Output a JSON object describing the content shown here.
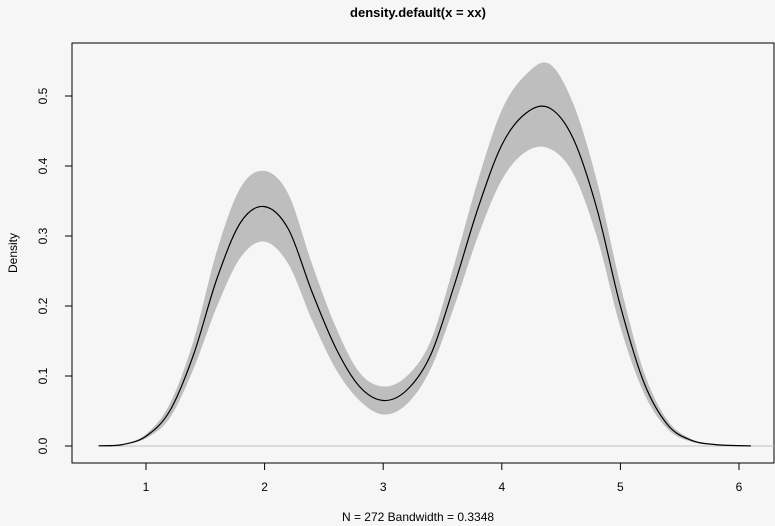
{
  "chart_data": {
    "type": "area",
    "title": "density.default(x = xx)",
    "xlabel": "N = 272   Bandwidth = 0.3348",
    "ylabel": "Density",
    "xlim": [
      0.6,
      6.1
    ],
    "ylim": [
      0,
      0.55
    ],
    "xticks": [
      1,
      2,
      3,
      4,
      5,
      6
    ],
    "yticks": [
      0.0,
      0.1,
      0.2,
      0.3,
      0.4,
      0.5
    ],
    "xtick_labels": [
      "1",
      "2",
      "3",
      "4",
      "5",
      "6"
    ],
    "ytick_labels": [
      "0.0",
      "0.1",
      "0.2",
      "0.3",
      "0.4",
      "0.5"
    ],
    "grid": false,
    "colors": {
      "band": "#bebebe",
      "line": "#000000",
      "baseline": "#bebebe",
      "background": "#f6f6f6"
    },
    "series": [
      {
        "x": [
          0.6,
          0.8,
          1.0,
          1.2,
          1.4,
          1.6,
          1.8,
          2.0,
          2.2,
          2.4,
          2.6,
          2.8,
          3.0,
          3.2,
          3.4,
          3.6,
          3.8,
          4.0,
          4.2,
          4.4,
          4.6,
          4.8,
          5.0,
          5.2,
          5.4,
          5.6,
          5.8,
          6.0,
          6.1
        ],
        "values": [
          0.0003,
          0.002,
          0.014,
          0.05,
          0.13,
          0.24,
          0.32,
          0.342,
          0.31,
          0.22,
          0.14,
          0.085,
          0.065,
          0.08,
          0.13,
          0.23,
          0.34,
          0.43,
          0.475,
          0.483,
          0.44,
          0.34,
          0.2,
          0.09,
          0.03,
          0.008,
          0.002,
          0.0005,
          0.0002
        ],
        "lower": [
          0.0002,
          0.0015,
          0.011,
          0.04,
          0.11,
          0.2,
          0.27,
          0.292,
          0.26,
          0.18,
          0.11,
          0.065,
          0.045,
          0.06,
          0.11,
          0.2,
          0.3,
          0.38,
          0.42,
          0.425,
          0.39,
          0.3,
          0.17,
          0.075,
          0.024,
          0.006,
          0.0015,
          0.0004,
          0.0001
        ],
        "upper": [
          0.0004,
          0.0025,
          0.017,
          0.06,
          0.15,
          0.28,
          0.37,
          0.393,
          0.36,
          0.26,
          0.17,
          0.105,
          0.085,
          0.1,
          0.15,
          0.26,
          0.38,
          0.48,
          0.53,
          0.546,
          0.49,
          0.38,
          0.23,
          0.105,
          0.036,
          0.01,
          0.0025,
          0.0006,
          0.0003
        ]
      }
    ]
  }
}
